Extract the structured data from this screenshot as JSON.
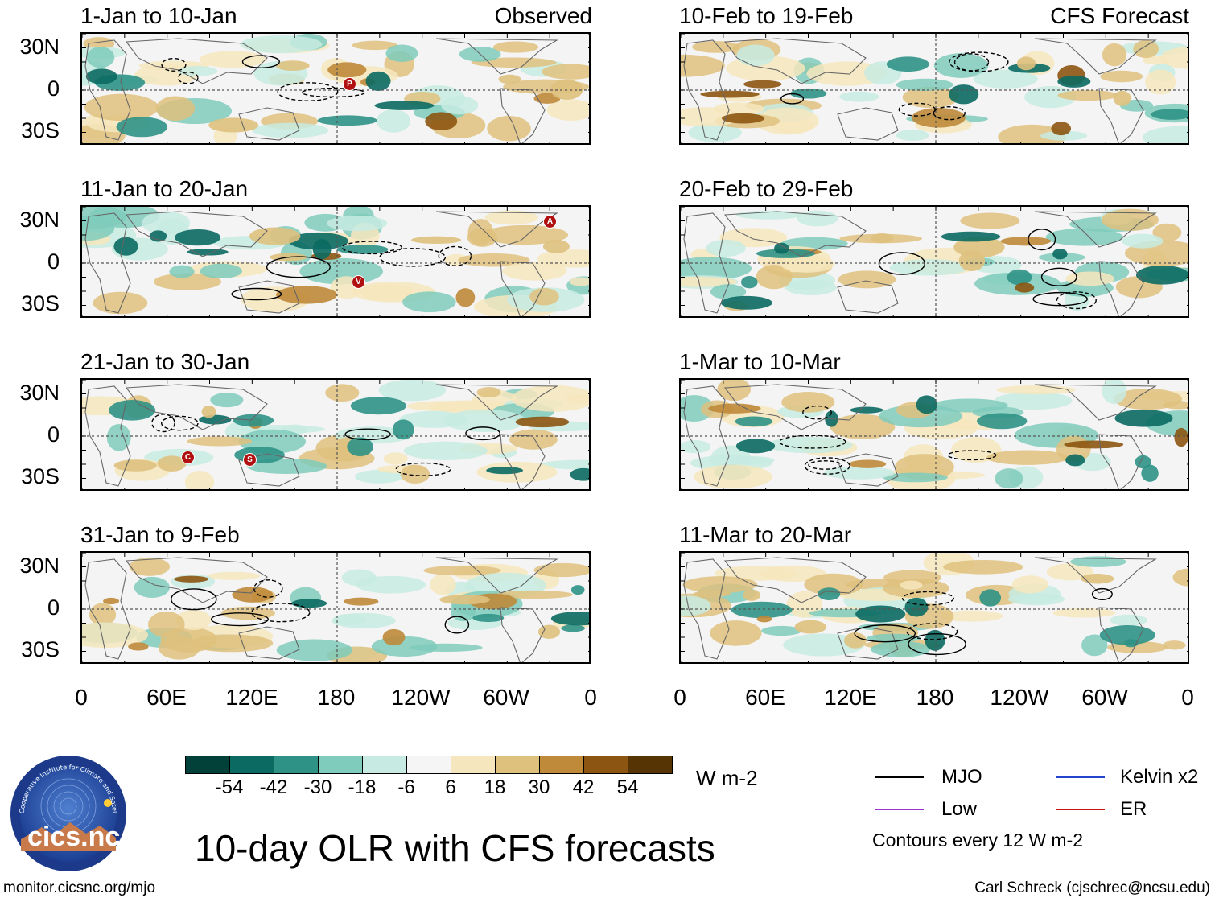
{
  "figure_title": "10-day OLR with CFS forecasts",
  "left_label": "Observed",
  "right_label": "CFS Forecast",
  "panels_left": [
    {
      "title": "1-Jan to 10-Jan",
      "storms": [
        {
          "letter": "P"
        }
      ]
    },
    {
      "title": "11-Jan to 20-Jan",
      "storms": [
        {
          "letter": "V"
        },
        {
          "letter": "A"
        }
      ]
    },
    {
      "title": "21-Jan to 30-Jan",
      "storms": [
        {
          "letter": "C"
        },
        {
          "letter": "S"
        }
      ]
    },
    {
      "title": "31-Jan to 9-Feb",
      "storms": []
    }
  ],
  "panels_right": [
    {
      "title": "10-Feb to 19-Feb"
    },
    {
      "title": "20-Feb to 29-Feb"
    },
    {
      "title": "1-Mar to 10-Mar"
    },
    {
      "title": "11-Mar to 20-Mar"
    }
  ],
  "lat_labels": [
    "30N",
    "0",
    "30S"
  ],
  "lon_labels": [
    "0",
    "60E",
    "120E",
    "180",
    "120W",
    "60W",
    "0"
  ],
  "colorbar": {
    "units": "W m-2",
    "ticks": [
      "-54",
      "-42",
      "-30",
      "-18",
      "-6",
      "6",
      "18",
      "30",
      "42",
      "54"
    ],
    "colors": [
      "#02403a",
      "#0b6a62",
      "#2f9286",
      "#7fcbbc",
      "#c7ebe2",
      "#f5f5f5",
      "#f6e6bd",
      "#dfc17e",
      "#bf8a3a",
      "#8c5511",
      "#563403"
    ]
  },
  "legend": {
    "items": [
      {
        "label": "MJO",
        "color": "#000000"
      },
      {
        "label": "Kelvin x2",
        "color": "#2244cc"
      },
      {
        "label": "Low",
        "color": "#9933cc"
      },
      {
        "label": "ER",
        "color": "#cc1111"
      }
    ],
    "note": "Contours every 12 W m-2"
  },
  "logo_text": "cics.nc",
  "logo_ring_text": "Cooperative Institute for Climate and Satellites",
  "footer_left": "monitor.cicsnc.org/mjo",
  "footer_right": "Carl Schreck (cjschrec@ncsu.edu)"
}
